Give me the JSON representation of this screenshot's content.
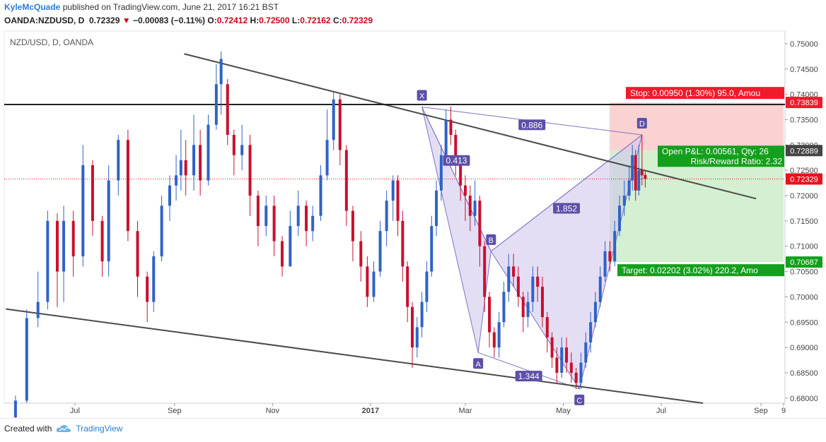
{
  "header": {
    "author": "KyleMcQuade",
    "published": "published on TradingView.com, June 21, 2017 16:21 BST",
    "symbol": "OANDA:NZDUSD, D",
    "last": "0.72329",
    "change_arrow": "down-triangle-icon",
    "change": "−0.00083 (−0.11%)",
    "o_label": "O:",
    "o": "0.72412",
    "h_label": "H:",
    "h": "0.72500",
    "l_label": "L:",
    "l": "0.72162",
    "c_label": "C:",
    "c": "0.72329"
  },
  "footer": {
    "created_with": "Created with",
    "brand": "TradingView",
    "brand_icon": "tradingview-cloud-icon"
  },
  "colors": {
    "up": "#2f63c6",
    "down": "#c8102e",
    "pattern_fill": "#cdc3ec",
    "pattern_stroke": "#7e72c4",
    "pattern_label": "#5e4fa8",
    "stop_zone": "#f9c7c7",
    "target_zone": "#c9ebc5",
    "stop_badge": "#ef1b2c",
    "target_badge": "#14a01c",
    "trendline": "#4a4a4a",
    "price_tag": "#e8111d"
  },
  "chart_data": {
    "type": "candlestick",
    "title": "NZD/USD, D, OANDA",
    "y_axis": {
      "ticks": [
        "0.75000",
        "0.74500",
        "0.74000",
        "0.73500",
        "0.73000",
        "0.72500",
        "0.72000",
        "0.71500",
        "0.71000",
        "0.70500",
        "0.70000",
        "0.69500",
        "0.69000",
        "0.68500",
        "0.68000"
      ],
      "range": [
        0.679,
        0.7525
      ]
    },
    "x_axis": {
      "ticks": [
        "Jul",
        "Sep",
        "Nov",
        "2017",
        "Mar",
        "May",
        "Jul",
        "Sep",
        "9"
      ]
    },
    "price_tags": [
      {
        "name": "stop-level",
        "value": "0.73839"
      },
      {
        "name": "entry-level",
        "value": "0.72889"
      },
      {
        "name": "last-price",
        "value": "0.72329"
      },
      {
        "name": "target-level",
        "value": "0.70687"
      }
    ],
    "pattern": {
      "name": "XABCD",
      "points": [
        {
          "label": "X",
          "date": "2017-02-02",
          "price": 0.7375
        },
        {
          "label": "A",
          "date": "2017-03-09",
          "price": 0.689
        },
        {
          "label": "B",
          "date": "2017-03-17",
          "price": 0.709
        },
        {
          "label": "C",
          "date": "2017-05-11",
          "price": 0.6818
        },
        {
          "label": "D",
          "date": "2017-06-19",
          "price": 0.732
        }
      ],
      "ratios": [
        "0.886",
        "0.413",
        "1.852",
        "1.344"
      ]
    },
    "trendlines": [
      {
        "name": "upper-channel",
        "from": {
          "date": "2016-09-07",
          "price": 0.748
        },
        "to": {
          "date": "2017-08-29",
          "price": 0.7194
        }
      },
      {
        "name": "lower-channel",
        "from": {
          "date": "2016-05-19",
          "price": 0.6976
        },
        "to": {
          "date": "2017-07-27",
          "price": 0.679
        }
      },
      {
        "name": "horizontal-resistance",
        "price": 0.738
      }
    ],
    "position": {
      "stop": "Stop: 0.00950 (1.30%) 95.0, Amou",
      "open_pnl": "Open P&L: 0.00561, Qty: 26",
      "risk_reward": "Risk/Reward Ratio: 2.32",
      "target": "Target: 0.02202 (3.02%) 220.2, Amo",
      "entry": 0.72889,
      "stop_price": 0.73839,
      "target_price": 0.70687
    },
    "candles": [
      {
        "d": "2016-05-25",
        "o": 0.6762,
        "c": 0.6795,
        "h": 0.6805,
        "l": 0.6755
      },
      {
        "d": "2016-06-01",
        "o": 0.6795,
        "c": 0.6958,
        "h": 0.6975,
        "l": 0.679
      },
      {
        "d": "2016-06-08",
        "o": 0.6958,
        "c": 0.699,
        "h": 0.705,
        "l": 0.694
      },
      {
        "d": "2016-06-14",
        "o": 0.699,
        "c": 0.715,
        "h": 0.717,
        "l": 0.6975
      },
      {
        "d": "2016-06-20",
        "o": 0.715,
        "c": 0.705,
        "h": 0.7165,
        "l": 0.698
      },
      {
        "d": "2016-06-24",
        "o": 0.705,
        "c": 0.715,
        "h": 0.718,
        "l": 0.699
      },
      {
        "d": "2016-06-30",
        "o": 0.715,
        "c": 0.708,
        "h": 0.717,
        "l": 0.704
      },
      {
        "d": "2016-07-06",
        "o": 0.708,
        "c": 0.726,
        "h": 0.73,
        "l": 0.706
      },
      {
        "d": "2016-07-12",
        "o": 0.726,
        "c": 0.715,
        "h": 0.727,
        "l": 0.712
      },
      {
        "d": "2016-07-18",
        "o": 0.715,
        "c": 0.707,
        "h": 0.716,
        "l": 0.704
      },
      {
        "d": "2016-07-22",
        "o": 0.707,
        "c": 0.723,
        "h": 0.726,
        "l": 0.704
      },
      {
        "d": "2016-07-28",
        "o": 0.723,
        "c": 0.731,
        "h": 0.732,
        "l": 0.72
      },
      {
        "d": "2016-08-03",
        "o": 0.731,
        "c": 0.713,
        "h": 0.733,
        "l": 0.711
      },
      {
        "d": "2016-08-09",
        "o": 0.713,
        "c": 0.704,
        "h": 0.715,
        "l": 0.7
      },
      {
        "d": "2016-08-15",
        "o": 0.704,
        "c": 0.699,
        "h": 0.705,
        "l": 0.695
      },
      {
        "d": "2016-08-19",
        "o": 0.699,
        "c": 0.708,
        "h": 0.709,
        "l": 0.697
      },
      {
        "d": "2016-08-24",
        "o": 0.708,
        "c": 0.718,
        "h": 0.72,
        "l": 0.707
      },
      {
        "d": "2016-08-29",
        "o": 0.718,
        "c": 0.722,
        "h": 0.724,
        "l": 0.715
      },
      {
        "d": "2016-09-02",
        "o": 0.722,
        "c": 0.724,
        "h": 0.728,
        "l": 0.719
      },
      {
        "d": "2016-09-05",
        "o": 0.724,
        "c": 0.727,
        "h": 0.733,
        "l": 0.721
      },
      {
        "d": "2016-09-08",
        "o": 0.727,
        "c": 0.724,
        "h": 0.731,
        "l": 0.72
      },
      {
        "d": "2016-09-13",
        "o": 0.724,
        "c": 0.73,
        "h": 0.736,
        "l": 0.721
      },
      {
        "d": "2016-09-17",
        "o": 0.73,
        "c": 0.723,
        "h": 0.733,
        "l": 0.72
      },
      {
        "d": "2016-09-22",
        "o": 0.723,
        "c": 0.734,
        "h": 0.736,
        "l": 0.722
      },
      {
        "d": "2016-09-27",
        "o": 0.734,
        "c": 0.742,
        "h": 0.746,
        "l": 0.733
      },
      {
        "d": "2016-09-30",
        "o": 0.742,
        "c": 0.747,
        "h": 0.7485,
        "l": 0.736
      },
      {
        "d": "2016-10-04",
        "o": 0.742,
        "c": 0.732,
        "h": 0.743,
        "l": 0.73
      },
      {
        "d": "2016-10-08",
        "o": 0.732,
        "c": 0.728,
        "h": 0.733,
        "l": 0.724
      },
      {
        "d": "2016-10-13",
        "o": 0.728,
        "c": 0.73,
        "h": 0.734,
        "l": 0.725
      },
      {
        "d": "2016-10-18",
        "o": 0.73,
        "c": 0.72,
        "h": 0.732,
        "l": 0.716
      },
      {
        "d": "2016-10-23",
        "o": 0.72,
        "c": 0.714,
        "h": 0.721,
        "l": 0.71
      },
      {
        "d": "2016-10-28",
        "o": 0.714,
        "c": 0.718,
        "h": 0.72,
        "l": 0.712
      },
      {
        "d": "2016-11-02",
        "o": 0.718,
        "c": 0.711,
        "h": 0.72,
        "l": 0.708
      },
      {
        "d": "2016-11-07",
        "o": 0.711,
        "c": 0.706,
        "h": 0.712,
        "l": 0.704
      },
      {
        "d": "2016-11-12",
        "o": 0.706,
        "c": 0.714,
        "h": 0.717,
        "l": 0.706
      },
      {
        "d": "2016-11-17",
        "o": 0.714,
        "c": 0.718,
        "h": 0.721,
        "l": 0.712
      },
      {
        "d": "2016-11-22",
        "o": 0.718,
        "c": 0.713,
        "h": 0.719,
        "l": 0.71
      },
      {
        "d": "2016-11-26",
        "o": 0.713,
        "c": 0.716,
        "h": 0.718,
        "l": 0.711
      },
      {
        "d": "2016-12-01",
        "o": 0.716,
        "c": 0.724,
        "h": 0.726,
        "l": 0.715
      },
      {
        "d": "2016-12-05",
        "o": 0.724,
        "c": 0.731,
        "h": 0.737,
        "l": 0.723
      },
      {
        "d": "2016-12-09",
        "o": 0.731,
        "c": 0.739,
        "h": 0.7405,
        "l": 0.729
      },
      {
        "d": "2016-12-13",
        "o": 0.739,
        "c": 0.729,
        "h": 0.74,
        "l": 0.726
      },
      {
        "d": "2016-12-17",
        "o": 0.729,
        "c": 0.717,
        "h": 0.73,
        "l": 0.714
      },
      {
        "d": "2016-12-21",
        "o": 0.717,
        "c": 0.711,
        "h": 0.718,
        "l": 0.707
      },
      {
        "d": "2016-12-26",
        "o": 0.711,
        "c": 0.706,
        "h": 0.713,
        "l": 0.703
      },
      {
        "d": "2016-12-30",
        "o": 0.706,
        "c": 0.7,
        "h": 0.708,
        "l": 0.698
      },
      {
        "d": "2017-01-03",
        "o": 0.7,
        "c": 0.705,
        "h": 0.707,
        "l": 0.699
      },
      {
        "d": "2017-01-07",
        "o": 0.705,
        "c": 0.713,
        "h": 0.715,
        "l": 0.704
      },
      {
        "d": "2017-01-11",
        "o": 0.713,
        "c": 0.719,
        "h": 0.721,
        "l": 0.71
      },
      {
        "d": "2017-01-15",
        "o": 0.719,
        "c": 0.723,
        "h": 0.724,
        "l": 0.715
      },
      {
        "d": "2017-01-18",
        "o": 0.723,
        "c": 0.715,
        "h": 0.724,
        "l": 0.712
      },
      {
        "d": "2017-01-21",
        "o": 0.715,
        "c": 0.706,
        "h": 0.717,
        "l": 0.703
      },
      {
        "d": "2017-01-24",
        "o": 0.706,
        "c": 0.698,
        "h": 0.707,
        "l": 0.695
      },
      {
        "d": "2017-01-27",
        "o": 0.698,
        "c": 0.69,
        "h": 0.699,
        "l": 0.686
      },
      {
        "d": "2017-01-30",
        "o": 0.69,
        "c": 0.694,
        "h": 0.696,
        "l": 0.688
      },
      {
        "d": "2017-02-02",
        "o": 0.694,
        "c": 0.699,
        "h": 0.701,
        "l": 0.692
      },
      {
        "d": "2017-02-05",
        "o": 0.699,
        "c": 0.705,
        "h": 0.707,
        "l": 0.697
      },
      {
        "d": "2017-02-08",
        "o": 0.705,
        "c": 0.714,
        "h": 0.716,
        "l": 0.704
      },
      {
        "d": "2017-02-11",
        "o": 0.714,
        "c": 0.721,
        "h": 0.723,
        "l": 0.712
      },
      {
        "d": "2017-02-14",
        "o": 0.721,
        "c": 0.728,
        "h": 0.73,
        "l": 0.719
      },
      {
        "d": "2017-02-17",
        "o": 0.728,
        "c": 0.735,
        "h": 0.737,
        "l": 0.726
      },
      {
        "d": "2017-02-20",
        "o": 0.735,
        "c": 0.732,
        "h": 0.7376,
        "l": 0.73
      },
      {
        "d": "2017-02-23",
        "o": 0.732,
        "c": 0.727,
        "h": 0.733,
        "l": 0.724
      },
      {
        "d": "2017-02-26",
        "o": 0.727,
        "c": 0.722,
        "h": 0.728,
        "l": 0.719
      },
      {
        "d": "2017-03-01",
        "o": 0.722,
        "c": 0.72,
        "h": 0.724,
        "l": 0.715
      },
      {
        "d": "2017-03-04",
        "o": 0.72,
        "c": 0.716,
        "h": 0.722,
        "l": 0.713
      },
      {
        "d": "2017-03-07",
        "o": 0.716,
        "c": 0.719,
        "h": 0.723,
        "l": 0.714
      },
      {
        "d": "2017-03-10",
        "o": 0.719,
        "c": 0.71,
        "h": 0.72,
        "l": 0.706
      },
      {
        "d": "2017-03-13",
        "o": 0.71,
        "c": 0.7,
        "h": 0.711,
        "l": 0.697
      },
      {
        "d": "2017-03-16",
        "o": 0.7,
        "c": 0.693,
        "h": 0.701,
        "l": 0.69
      },
      {
        "d": "2017-03-19",
        "o": 0.693,
        "c": 0.69,
        "h": 0.694,
        "l": 0.688
      },
      {
        "d": "2017-03-22",
        "o": 0.69,
        "c": 0.695,
        "h": 0.697,
        "l": 0.688
      },
      {
        "d": "2017-03-25",
        "o": 0.695,
        "c": 0.701,
        "h": 0.703,
        "l": 0.694
      },
      {
        "d": "2017-03-28",
        "o": 0.701,
        "c": 0.706,
        "h": 0.7085,
        "l": 0.699
      },
      {
        "d": "2017-03-31",
        "o": 0.706,
        "c": 0.704,
        "h": 0.7085,
        "l": 0.702
      },
      {
        "d": "2017-04-03",
        "o": 0.704,
        "c": 0.7,
        "h": 0.706,
        "l": 0.698
      },
      {
        "d": "2017-04-06",
        "o": 0.7,
        "c": 0.696,
        "h": 0.701,
        "l": 0.693
      },
      {
        "d": "2017-04-09",
        "o": 0.696,
        "c": 0.699,
        "h": 0.701,
        "l": 0.694
      },
      {
        "d": "2017-04-12",
        "o": 0.699,
        "c": 0.704,
        "h": 0.706,
        "l": 0.697
      },
      {
        "d": "2017-04-15",
        "o": 0.704,
        "c": 0.702,
        "h": 0.706,
        "l": 0.699
      },
      {
        "d": "2017-04-18",
        "o": 0.702,
        "c": 0.696,
        "h": 0.704,
        "l": 0.694
      },
      {
        "d": "2017-04-21",
        "o": 0.696,
        "c": 0.692,
        "h": 0.697,
        "l": 0.689
      },
      {
        "d": "2017-04-24",
        "o": 0.692,
        "c": 0.688,
        "h": 0.693,
        "l": 0.686
      },
      {
        "d": "2017-04-27",
        "o": 0.688,
        "c": 0.685,
        "h": 0.69,
        "l": 0.683
      },
      {
        "d": "2017-04-30",
        "o": 0.685,
        "c": 0.69,
        "h": 0.692,
        "l": 0.684
      },
      {
        "d": "2017-05-03",
        "o": 0.69,
        "c": 0.687,
        "h": 0.692,
        "l": 0.685
      },
      {
        "d": "2017-05-06",
        "o": 0.687,
        "c": 0.685,
        "h": 0.689,
        "l": 0.683
      },
      {
        "d": "2017-05-09",
        "o": 0.685,
        "c": 0.683,
        "h": 0.686,
        "l": 0.6818
      },
      {
        "d": "2017-05-12",
        "o": 0.683,
        "c": 0.687,
        "h": 0.689,
        "l": 0.6818
      },
      {
        "d": "2017-05-15",
        "o": 0.687,
        "c": 0.691,
        "h": 0.693,
        "l": 0.686
      },
      {
        "d": "2017-05-18",
        "o": 0.691,
        "c": 0.695,
        "h": 0.697,
        "l": 0.689
      },
      {
        "d": "2017-05-21",
        "o": 0.695,
        "c": 0.699,
        "h": 0.701,
        "l": 0.694
      },
      {
        "d": "2017-05-24",
        "o": 0.699,
        "c": 0.704,
        "h": 0.706,
        "l": 0.698
      },
      {
        "d": "2017-05-27",
        "o": 0.704,
        "c": 0.709,
        "h": 0.711,
        "l": 0.703
      },
      {
        "d": "2017-05-30",
        "o": 0.709,
        "c": 0.707,
        "h": 0.711,
        "l": 0.705
      },
      {
        "d": "2017-06-02",
        "o": 0.707,
        "c": 0.713,
        "h": 0.715,
        "l": 0.706
      },
      {
        "d": "2017-06-05",
        "o": 0.713,
        "c": 0.718,
        "h": 0.72,
        "l": 0.712
      },
      {
        "d": "2017-06-08",
        "o": 0.718,
        "c": 0.72,
        "h": 0.723,
        "l": 0.716
      },
      {
        "d": "2017-06-11",
        "o": 0.72,
        "c": 0.723,
        "h": 0.726,
        "l": 0.719
      },
      {
        "d": "2017-06-13",
        "o": 0.723,
        "c": 0.728,
        "h": 0.73,
        "l": 0.721
      },
      {
        "d": "2017-06-15",
        "o": 0.728,
        "c": 0.721,
        "h": 0.729,
        "l": 0.719
      },
      {
        "d": "2017-06-17",
        "o": 0.721,
        "c": 0.725,
        "h": 0.73,
        "l": 0.72
      },
      {
        "d": "2017-06-19",
        "o": 0.725,
        "c": 0.724,
        "h": 0.732,
        "l": 0.722
      },
      {
        "d": "2017-06-21",
        "o": 0.7241,
        "c": 0.7233,
        "h": 0.725,
        "l": 0.7216
      }
    ]
  }
}
